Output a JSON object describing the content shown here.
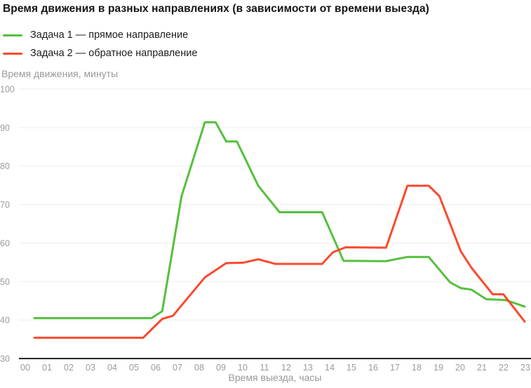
{
  "title": "Время движения в разных направлениях (в зависимости от времени выезда)",
  "legend": [
    {
      "label": "Задача 1 — прямое направление",
      "color": "#55c03c"
    },
    {
      "label": "Задача 2 — обратное направление",
      "color": "#fb4a2e"
    }
  ],
  "chart_data": {
    "type": "line",
    "title": "Время движения в разных направлениях (в зависимости от времени выезда)",
    "xlabel": "Время выезда, часы",
    "ylabel": "Время движения, минуты",
    "x_tick_labels": [
      "00",
      "01",
      "02",
      "03",
      "04",
      "05",
      "06",
      "07",
      "08",
      "09",
      "10",
      "11",
      "12",
      "13",
      "14",
      "15",
      "16",
      "17",
      "18",
      "19",
      "20",
      "21",
      "22",
      "23"
    ],
    "y_ticks": [
      30,
      40,
      50,
      60,
      70,
      80,
      90,
      100
    ],
    "ylim": [
      30,
      100
    ],
    "xlim": [
      0,
      23
    ],
    "grid": "horizontal",
    "legend_position": "top-left",
    "series": [
      {
        "name": "Задача 1 — прямое направление",
        "color": "#55c03c",
        "points": [
          [
            0,
            40.5
          ],
          [
            5.5,
            40.5
          ],
          [
            6.0,
            42.3
          ],
          [
            6.9,
            72.1
          ],
          [
            8.0,
            91.4
          ],
          [
            8.5,
            91.4
          ],
          [
            9.0,
            86.4
          ],
          [
            9.5,
            86.4
          ],
          [
            10.5,
            74.9
          ],
          [
            11.5,
            68
          ],
          [
            13.5,
            68
          ],
          [
            14.5,
            55.4
          ],
          [
            16.5,
            55.3
          ],
          [
            17.5,
            56.4
          ],
          [
            18.5,
            56.4
          ],
          [
            19.5,
            49.8
          ],
          [
            20.0,
            48.3
          ],
          [
            20.5,
            47.9
          ],
          [
            21.2,
            45.4
          ],
          [
            22.1,
            45.2
          ],
          [
            23,
            43.5
          ]
        ]
      },
      {
        "name": "Задача 2 — обратное направление",
        "color": "#fb4a2e",
        "points": [
          [
            0,
            35.4
          ],
          [
            5.1,
            35.4
          ],
          [
            6.0,
            40.3
          ],
          [
            6.5,
            41.1
          ],
          [
            8.0,
            51.1
          ],
          [
            9.0,
            54.8
          ],
          [
            9.8,
            54.9
          ],
          [
            10.5,
            55.8
          ],
          [
            11.3,
            54.6
          ],
          [
            13.5,
            54.6
          ],
          [
            14.0,
            57.6
          ],
          [
            14.6,
            58.9
          ],
          [
            16.5,
            58.8
          ],
          [
            17.5,
            74.9
          ],
          [
            18.5,
            74.9
          ],
          [
            19.0,
            72.2
          ],
          [
            20.0,
            57.9
          ],
          [
            20.5,
            53.6
          ],
          [
            21.5,
            46.7
          ],
          [
            22.0,
            46.7
          ],
          [
            23,
            39.6
          ]
        ]
      }
    ]
  },
  "style_colors": {
    "grid_line": "#ededed",
    "axis_line": "#262626",
    "tick_label": "#9b9b9b"
  }
}
